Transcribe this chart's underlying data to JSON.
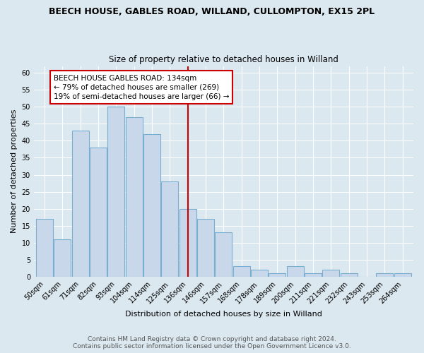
{
  "title": "BEECH HOUSE, GABLES ROAD, WILLAND, CULLOMPTON, EX15 2PL",
  "subtitle": "Size of property relative to detached houses in Willand",
  "xlabel": "Distribution of detached houses by size in Willand",
  "ylabel": "Number of detached properties",
  "footer_line1": "Contains HM Land Registry data © Crown copyright and database right 2024.",
  "footer_line2": "Contains public sector information licensed under the Open Government Licence v3.0.",
  "categories": [
    "50sqm",
    "61sqm",
    "71sqm",
    "82sqm",
    "93sqm",
    "104sqm",
    "114sqm",
    "125sqm",
    "136sqm",
    "146sqm",
    "157sqm",
    "168sqm",
    "178sqm",
    "189sqm",
    "200sqm",
    "211sqm",
    "221sqm",
    "232sqm",
    "243sqm",
    "253sqm",
    "264sqm"
  ],
  "values": [
    17,
    11,
    43,
    38,
    50,
    47,
    42,
    28,
    20,
    17,
    13,
    3,
    2,
    1,
    3,
    1,
    2,
    1,
    0,
    1,
    1
  ],
  "bar_color": "#c8d8ea",
  "bar_edge_color": "#7aaed0",
  "vline_x": 8,
  "vline_color": "#cc0000",
  "annotation_title": "BEECH HOUSE GABLES ROAD: 134sqm",
  "annotation_line1": "← 79% of detached houses are smaller (269)",
  "annotation_line2": "19% of semi-detached houses are larger (66) →",
  "annotation_box_color": "#cc0000",
  "ylim": [
    0,
    62
  ],
  "yticks": [
    0,
    5,
    10,
    15,
    20,
    25,
    30,
    35,
    40,
    45,
    50,
    55,
    60
  ],
  "fig_bg_color": "#dce8f0",
  "plot_bg_color": "#dce8f0",
  "grid_color": "#ffffff",
  "title_fontsize": 9,
  "subtitle_fontsize": 8.5,
  "label_fontsize": 8,
  "tick_fontsize": 7,
  "footer_fontsize": 6.5,
  "ann_fontsize": 7.5
}
